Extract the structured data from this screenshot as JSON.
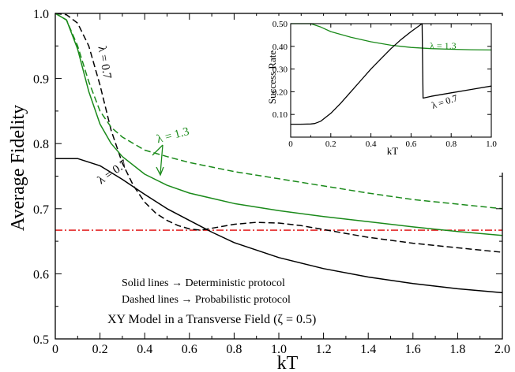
{
  "chart_data": [
    {
      "type": "line",
      "xlabel": "kT",
      "ylabel": "Average Fidelity",
      "xlim": [
        0,
        2.0
      ],
      "ylim": [
        0.5,
        1.0
      ],
      "xticks": [
        "0",
        "0.2",
        "0.4",
        "0.6",
        "0.8",
        "1.0",
        "1.2",
        "1.4",
        "1.6",
        "1.8",
        "2.0"
      ],
      "yticks": [
        "0.5",
        "0.6",
        "0.7",
        "0.8",
        "0.9",
        "1.0"
      ],
      "threshold": {
        "y": 0.667,
        "color": "#dd0000",
        "style": "dash-dot"
      },
      "series": [
        {
          "name": "λ = 0.7",
          "protocol": "deterministic",
          "color": "#000000",
          "dash": false,
          "x": [
            0,
            0.1,
            0.2,
            0.3,
            0.4,
            0.5,
            0.6,
            0.7,
            0.8,
            1.0,
            1.2,
            1.4,
            1.6,
            1.8,
            2.0
          ],
          "y": [
            0.777,
            0.777,
            0.766,
            0.745,
            0.722,
            0.7,
            0.682,
            0.664,
            0.648,
            0.625,
            0.608,
            0.595,
            0.585,
            0.577,
            0.571
          ]
        },
        {
          "name": "λ = 0.7",
          "protocol": "probabilistic",
          "color": "#000000",
          "dash": true,
          "x": [
            0,
            0.05,
            0.1,
            0.15,
            0.2,
            0.25,
            0.3,
            0.35,
            0.4,
            0.45,
            0.5,
            0.55,
            0.6,
            0.65,
            0.7,
            0.8,
            0.9,
            1.0,
            1.1,
            1.2,
            1.3,
            1.4,
            1.6,
            1.8,
            2.0
          ],
          "y": [
            1.0,
            0.998,
            0.985,
            0.95,
            0.89,
            0.82,
            0.77,
            0.735,
            0.71,
            0.693,
            0.682,
            0.674,
            0.669,
            0.667,
            0.67,
            0.676,
            0.679,
            0.678,
            0.674,
            0.668,
            0.662,
            0.656,
            0.647,
            0.64,
            0.633
          ]
        },
        {
          "name": "λ = 1.3",
          "protocol": "deterministic",
          "color": "#1a8a1a",
          "dash": false,
          "x": [
            0,
            0.05,
            0.1,
            0.15,
            0.2,
            0.25,
            0.3,
            0.4,
            0.5,
            0.6,
            0.8,
            1.0,
            1.2,
            1.4,
            1.6,
            1.8,
            2.0
          ],
          "y": [
            1.0,
            0.99,
            0.945,
            0.88,
            0.83,
            0.8,
            0.78,
            0.753,
            0.736,
            0.724,
            0.708,
            0.697,
            0.688,
            0.68,
            0.672,
            0.665,
            0.659
          ]
        },
        {
          "name": "λ = 1.3",
          "protocol": "probabilistic",
          "color": "#1a8a1a",
          "dash": true,
          "x": [
            0,
            0.05,
            0.1,
            0.15,
            0.2,
            0.25,
            0.3,
            0.4,
            0.5,
            0.6,
            0.8,
            1.0,
            1.2,
            1.4,
            1.6,
            1.8,
            2.0
          ],
          "y": [
            1.0,
            0.99,
            0.95,
            0.895,
            0.85,
            0.825,
            0.81,
            0.79,
            0.78,
            0.771,
            0.757,
            0.746,
            0.735,
            0.724,
            0.714,
            0.707,
            0.7
          ]
        }
      ],
      "annotations": {
        "label_07_det": "λ = 0.7",
        "label_07_prob": "λ = 0.7",
        "label_13": "λ = 1.3",
        "legend_solid": "Solid lines → Deterministic protocol",
        "legend_dashed": "Dashed lines → Probabilistic protocol",
        "model": "XY Model in a Transverse Field (ζ = 0.5)"
      },
      "grid": false
    },
    {
      "type": "line",
      "inset": true,
      "xlabel": "kT",
      "ylabel": "Success Rate",
      "xlim": [
        0,
        1.0
      ],
      "ylim": [
        0,
        0.5
      ],
      "xticks": [
        "0",
        "0.2",
        "0.4",
        "0.6",
        "0.8",
        "1.0"
      ],
      "yticks": [
        "0.10",
        "0.20",
        "0.30",
        "0.40",
        "0.50"
      ],
      "series": [
        {
          "name": "λ = 1.3",
          "color": "#1a8a1a",
          "x": [
            0,
            0.1,
            0.15,
            0.2,
            0.3,
            0.4,
            0.5,
            0.6,
            0.7,
            0.8,
            0.9,
            1.0
          ],
          "y": [
            0.5,
            0.5,
            0.485,
            0.465,
            0.44,
            0.42,
            0.405,
            0.395,
            0.39,
            0.387,
            0.385,
            0.384
          ]
        },
        {
          "name": "λ = 0.7",
          "color": "#000000",
          "x": [
            0,
            0.05,
            0.1,
            0.12,
            0.15,
            0.2,
            0.25,
            0.3,
            0.35,
            0.4,
            0.45,
            0.5,
            0.55,
            0.6,
            0.655,
            0.66,
            0.7,
            0.8,
            0.9,
            1.0
          ],
          "y": [
            0.057,
            0.057,
            0.058,
            0.06,
            0.07,
            0.105,
            0.15,
            0.2,
            0.25,
            0.3,
            0.345,
            0.39,
            0.43,
            0.465,
            0.5,
            0.172,
            0.18,
            0.195,
            0.21,
            0.225
          ]
        }
      ],
      "annotations": {
        "label_13": "λ = 1.3",
        "label_07": "λ = 0.7"
      },
      "grid": false
    }
  ]
}
